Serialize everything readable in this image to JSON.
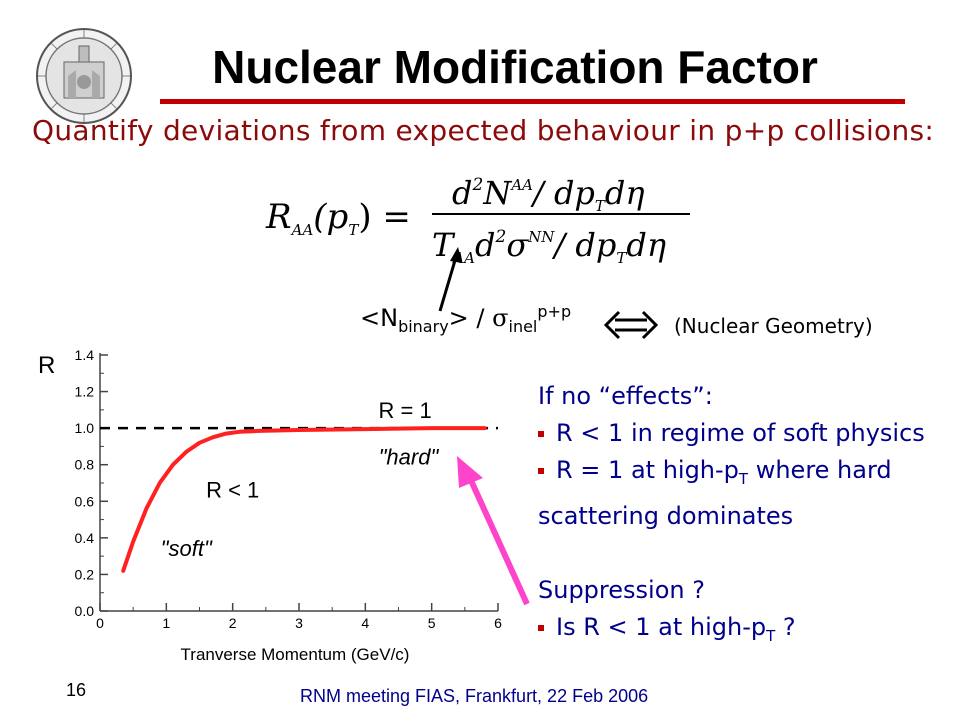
{
  "slide": {
    "title": "Nuclear Modification Factor",
    "subtitle": "Quantify deviations from expected behaviour in p+p collisions:",
    "page_number": "16",
    "footer": "RNM meeting FIAS, Frankfurt, 22 Feb 2006",
    "accent_color": "#c00000"
  },
  "formula": {
    "lhs_R": "R",
    "lhs_sub": "AA",
    "lhs_arg": "(p",
    "lhs_arg_sub": "T",
    "lhs_close": ") =",
    "num_d": "d",
    "num_d_sup": "2",
    "num_N": "N",
    "num_N_sup": "AA",
    "num_rest": "/ dp",
    "num_rest_sub": "T",
    "num_end": "dη",
    "den_T": "T",
    "den_T_sub": "AA",
    "den_d": "d",
    "den_d_sup": "2",
    "den_sigma": "σ",
    "den_sigma_sup": "NN",
    "den_rest": "/ dp",
    "den_rest_sub": "T",
    "den_end": "dη"
  },
  "geometry": {
    "n_open": "<N",
    "n_sub": "binary",
    "n_close": "> / ",
    "sigma": "σ",
    "sigma_sub": "inel",
    "sigma_sup": "p+p",
    "note": "(Nuclear Geometry)"
  },
  "chart_data": {
    "type": "line",
    "ylabel": "R",
    "xlabel": "Tranverse Momentum (GeV/c)",
    "xlim": [
      0,
      6
    ],
    "ylim": [
      0,
      1.4
    ],
    "x_ticks": [
      "0",
      "1",
      "2",
      "3",
      "4",
      "5",
      "6"
    ],
    "y_ticks": [
      "0.0",
      "0.2",
      "0.4",
      "0.6",
      "0.8",
      "1.0",
      "1.2",
      "1.4"
    ],
    "reference_line": {
      "y": 1.0,
      "label": "R = 1",
      "style": "dashed"
    },
    "series": [
      {
        "color": "#ff2020",
        "x": [
          0.35,
          0.5,
          0.7,
          0.9,
          1.1,
          1.3,
          1.5,
          1.7,
          1.9,
          2.1,
          2.4,
          3.0,
          4.0,
          5.0,
          5.8
        ],
        "y": [
          0.22,
          0.38,
          0.56,
          0.7,
          0.8,
          0.87,
          0.92,
          0.95,
          0.97,
          0.98,
          0.985,
          0.99,
          0.995,
          1.0,
          1.0
        ]
      }
    ],
    "annotations": [
      {
        "text": "R < 1",
        "x": 2.0,
        "y": 0.62
      },
      {
        "text": "\"soft\"",
        "x": 1.3,
        "y": 0.3
      },
      {
        "text": "\"hard\"",
        "x": 4.65,
        "y": 0.8
      }
    ]
  },
  "right_panel": {
    "heading": "If no “effects”:",
    "bullet1": "R < 1 in regime of soft physics",
    "bullet2_a": "R = 1 at high-p",
    "bullet2_sub": "T",
    "bullet2_b": " where hard scattering dominates",
    "suppression": "Suppression ?",
    "bullet3_a": "Is R < 1 at high-p",
    "bullet3_sub": "T",
    "bullet3_b": " ?"
  }
}
